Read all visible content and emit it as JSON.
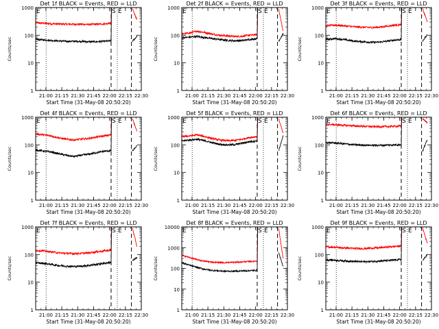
{
  "chart_data": [
    {
      "type": "line",
      "title": "Det 1f BLACK = Events, RED = LLD",
      "xlabel": "Start Time (31-May-08 20:50:20)",
      "ylabel": "Counts/sec",
      "xlim": [
        "20:50:20",
        "22:30:00"
      ],
      "ylim": [
        1,
        1000
      ],
      "yscale": "log",
      "xtick_labels": [
        "21:00",
        "21:15",
        "21:30",
        "21:45",
        "22:00",
        "22:15",
        "22:30"
      ],
      "ytick_labels": [
        "1",
        "10",
        "100",
        "1000"
      ],
      "markers": [
        "S",
        "E"
      ],
      "grid": false,
      "series": [
        {
          "color": "#ff0000",
          "values": [
            280,
            270,
            260,
            255,
            250,
            250,
            250,
            245,
            248,
            255,
            270
          ]
        },
        {
          "color": "#000000",
          "values": [
            70,
            68,
            65,
            62,
            60,
            60,
            60,
            58,
            58,
            60,
            62
          ]
        }
      ]
    },
    {
      "type": "line",
      "title": "Det 2f BLACK = Events, RED = LLD",
      "xlabel": "Start Time (31-May-08 20:50:20)",
      "ylabel": "Counts/sec",
      "xlim": [
        "20:50:20",
        "22:30:00"
      ],
      "ylim": [
        1,
        1000
      ],
      "yscale": "log",
      "xtick_labels": [
        "21:00",
        "21:15",
        "21:30",
        "21:45",
        "22:00",
        "22:15",
        "22:30"
      ],
      "ytick_labels": [
        "1",
        "10",
        "100",
        "1000"
      ],
      "markers": [
        "S",
        "E"
      ],
      "grid": false,
      "series": [
        {
          "color": "#ff0000",
          "values": [
            110,
            120,
            140,
            125,
            110,
            100,
            95,
            90,
            92,
            100,
            105
          ]
        },
        {
          "color": "#000000",
          "values": [
            80,
            85,
            90,
            82,
            75,
            70,
            65,
            63,
            64,
            70,
            75
          ]
        }
      ]
    },
    {
      "type": "line",
      "title": "Det 3f BLACK = Events, RED = LLD",
      "xlabel": "Start Time (31-May-08 20:50:20)",
      "ylabel": "Counts/sec",
      "xlim": [
        "20:50:20",
        "22:30:00"
      ],
      "ylim": [
        1,
        1000
      ],
      "yscale": "log",
      "xtick_labels": [
        "21:00",
        "21:15",
        "21:30",
        "21:45",
        "22:00",
        "22:15",
        "22:30"
      ],
      "ytick_labels": [
        "1",
        "10",
        "100",
        "1000"
      ],
      "markers": [
        "S",
        "E"
      ],
      "grid": false,
      "series": [
        {
          "color": "#ff0000",
          "values": [
            220,
            230,
            225,
            210,
            200,
            195,
            190,
            195,
            210,
            230,
            240
          ]
        },
        {
          "color": "#000000",
          "values": [
            70,
            75,
            72,
            65,
            60,
            58,
            55,
            56,
            60,
            66,
            70
          ]
        }
      ]
    },
    {
      "type": "line",
      "title": "Det 4f BLACK = Events, RED = LLD",
      "xlabel": "Start Time (31-May-08 20:50:20)",
      "ylabel": "Counts/sec",
      "xlim": [
        "20:50:20",
        "22:30:00"
      ],
      "ylim": [
        1,
        1000
      ],
      "yscale": "log",
      "xtick_labels": [
        "21:00",
        "21:15",
        "21:30",
        "21:45",
        "22:00",
        "22:15",
        "22:30"
      ],
      "ytick_labels": [
        "1",
        "10",
        "100",
        "1000"
      ],
      "markers": [
        "S",
        "E"
      ],
      "grid": false,
      "series": [
        {
          "color": "#ff0000",
          "values": [
            250,
            230,
            210,
            180,
            160,
            150,
            160,
            170,
            190,
            210,
            230
          ]
        },
        {
          "color": "#000000",
          "values": [
            65,
            60,
            55,
            48,
            42,
            38,
            42,
            46,
            52,
            58,
            62
          ]
        }
      ]
    },
    {
      "type": "line",
      "title": "Det 5f BLACK = Events, RED = LLD",
      "xlabel": "Start Time (31-May-08 20:50:20)",
      "ylabel": "Counts/sec",
      "xlim": [
        "20:50:20",
        "22:30:00"
      ],
      "ylim": [
        1,
        1000
      ],
      "yscale": "log",
      "xtick_labels": [
        "21:00",
        "21:15",
        "21:30",
        "21:45",
        "22:00",
        "22:15",
        "22:30"
      ],
      "ytick_labels": [
        "1",
        "10",
        "100",
        "1000"
      ],
      "markers": [
        "S",
        "E"
      ],
      "grid": false,
      "series": [
        {
          "color": "#ff0000",
          "values": [
            200,
            210,
            230,
            200,
            170,
            150,
            140,
            145,
            160,
            185,
            200
          ]
        },
        {
          "color": "#000000",
          "values": [
            140,
            150,
            160,
            140,
            120,
            105,
            100,
            102,
            115,
            130,
            140
          ]
        }
      ]
    },
    {
      "type": "line",
      "title": "Det 6f BLACK = Events, RED = LLD",
      "xlabel": "Start Time (31-May-08 20:50:20)",
      "ylabel": "Counts/sec",
      "xlim": [
        "20:50:20",
        "22:30:00"
      ],
      "ylim": [
        1,
        1000
      ],
      "yscale": "log",
      "xtick_labels": [
        "21:00",
        "21:15",
        "21:30",
        "21:45",
        "22:00",
        "22:15",
        "22:30"
      ],
      "ytick_labels": [
        "1",
        "10",
        "100",
        "1000"
      ],
      "markers": [
        "S",
        "E"
      ],
      "grid": false,
      "series": [
        {
          "color": "#ff0000",
          "values": [
            550,
            540,
            520,
            500,
            480,
            470,
            460,
            455,
            460,
            470,
            480
          ]
        },
        {
          "color": "#000000",
          "values": [
            120,
            118,
            112,
            105,
            100,
            98,
            97,
            96,
            98,
            100,
            102
          ]
        }
      ]
    },
    {
      "type": "line",
      "title": "Det 7f BLACK = Events, RED = LLD",
      "xlabel": "Start Time (31-May-08 20:50:20)",
      "ylabel": "Counts/sec",
      "xlim": [
        "20:50:20",
        "22:30:00"
      ],
      "ylim": [
        1,
        1000
      ],
      "yscale": "log",
      "xtick_labels": [
        "21:00",
        "21:15",
        "21:30",
        "21:45",
        "22:00",
        "22:15",
        "22:30"
      ],
      "ytick_labels": [
        "1",
        "10",
        "100",
        "1000"
      ],
      "markers": [
        "S",
        "E"
      ],
      "grid": false,
      "series": [
        {
          "color": "#ff0000",
          "values": [
            140,
            135,
            125,
            115,
            110,
            108,
            110,
            115,
            125,
            135,
            145
          ]
        },
        {
          "color": "#000000",
          "values": [
            50,
            48,
            44,
            40,
            38,
            37,
            38,
            40,
            44,
            48,
            52
          ]
        }
      ]
    },
    {
      "type": "line",
      "title": "Det 8f BLACK = Events, RED = LLD",
      "xlabel": "Start Time (31-May-08 20:50:20)",
      "ylabel": "Counts/sec",
      "xlim": [
        "20:50:20",
        "22:30:00"
      ],
      "ylim": [
        1,
        10000
      ],
      "yscale": "log",
      "xtick_labels": [
        "21:00",
        "21:15",
        "21:30",
        "21:45",
        "22:00",
        "22:15",
        "22:30"
      ],
      "ytick_labels": [
        "1",
        "10",
        "100",
        "1000",
        "10000"
      ],
      "markers": [
        "S",
        "E"
      ],
      "grid": false,
      "series": [
        {
          "color": "#ff0000",
          "values": [
            420,
            330,
            260,
            220,
            200,
            190,
            190,
            195,
            205,
            215,
            225
          ]
        },
        {
          "color": "#000000",
          "values": [
            180,
            140,
            110,
            90,
            80,
            75,
            73,
            73,
            75,
            78,
            80
          ]
        }
      ]
    },
    {
      "type": "line",
      "title": "Det 9f BLACK = Events, RED = LLD",
      "xlabel": "Start Time (31-May-08 20:50:20)",
      "ylabel": "Counts/sec",
      "xlim": [
        "20:50:20",
        "22:30:00"
      ],
      "ylim": [
        1,
        1000
      ],
      "yscale": "log",
      "xtick_labels": [
        "21:00",
        "21:15",
        "21:30",
        "21:45",
        "22:00",
        "22:15",
        "22:30"
      ],
      "ytick_labels": [
        "1",
        "10",
        "100",
        "1000"
      ],
      "markers": [
        "S",
        "E"
      ],
      "grid": false,
      "series": [
        {
          "color": "#ff0000",
          "values": [
            190,
            185,
            175,
            170,
            165,
            165,
            170,
            175,
            185,
            195,
            205
          ]
        },
        {
          "color": "#000000",
          "values": [
            65,
            63,
            60,
            58,
            56,
            55,
            56,
            58,
            60,
            63,
            66
          ]
        }
      ]
    }
  ]
}
